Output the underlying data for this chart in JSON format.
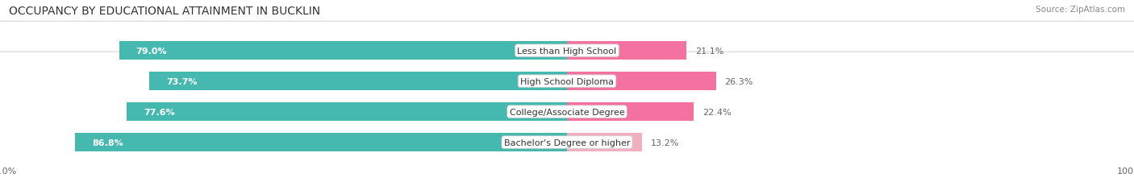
{
  "title": "OCCUPANCY BY EDUCATIONAL ATTAINMENT IN BUCKLIN",
  "source": "Source: ZipAtlas.com",
  "categories": [
    "Less than High School",
    "High School Diploma",
    "College/Associate Degree",
    "Bachelor's Degree or higher"
  ],
  "owner_pct": [
    79.0,
    73.7,
    77.6,
    86.8
  ],
  "renter_pct": [
    21.1,
    26.3,
    22.4,
    13.2
  ],
  "owner_color": "#45b8b0",
  "renter_color": "#f472a0",
  "renter_color_last": "#f0b0c0",
  "bg_color": "#efefef",
  "row_bg_color": "#e8e8e8",
  "title_fontsize": 10,
  "label_fontsize": 8,
  "pct_fontsize": 8,
  "tick_fontsize": 8,
  "source_fontsize": 7.5,
  "bar_height": 0.62
}
